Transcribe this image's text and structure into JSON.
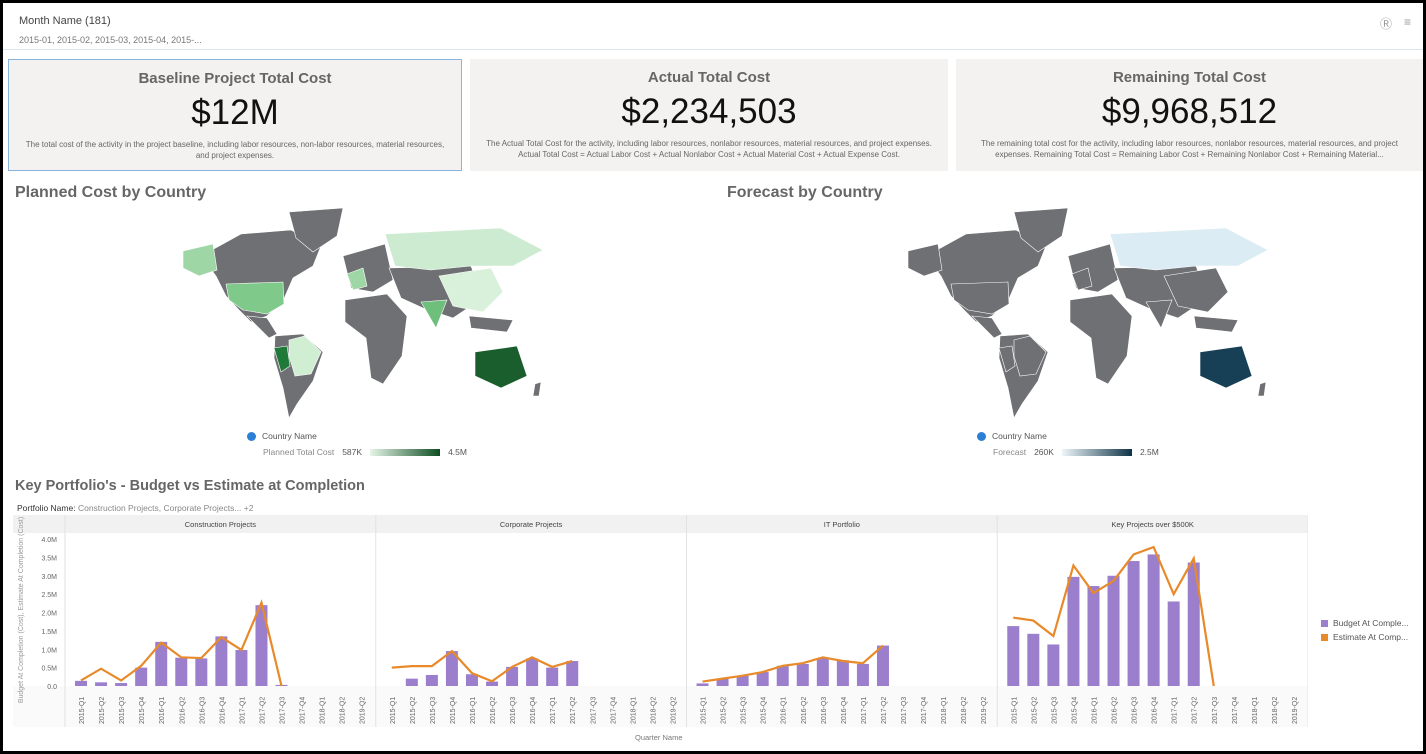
{
  "filter": {
    "title": "Month Name (181)",
    "values": "2015-01, 2015-02, 2015-03, 2015-04, 2015-..."
  },
  "icons": [
    "help-icon",
    "menu-icon"
  ],
  "kpis": [
    {
      "title": "Baseline Project Total Cost",
      "value": "$12M",
      "desc": "The total cost of the activity in the project baseline, including labor resources, non-labor resources, material resources, and project expenses."
    },
    {
      "title": "Actual Total Cost",
      "value": "$2,234,503",
      "desc": "The Actual Total Cost for the activity, including labor resources, nonlabor resources, material resources, and project expenses. Actual Total Cost = Actual Labor Cost + Actual Nonlabor Cost + Actual Material Cost + Actual Expense Cost."
    },
    {
      "title": "Remaining Total Cost",
      "value": "$9,968,512",
      "desc": "The remaining total cost for the activity, including labor resources, nonlabor resources, material resources, and project expenses. Remaining Total Cost = Remaining Labor Cost + Remaining Nonlabor Cost + Remaining Material..."
    }
  ],
  "maps": [
    {
      "title": "Planned Cost by Country",
      "legend_label": "Country Name",
      "measure": "Planned Total Cost",
      "min": "587K",
      "max": "4.5M",
      "grad_from": "#e6f5e8",
      "grad_to": "#0d4d22",
      "colors": {
        "base": "#6e7073",
        "us": "#7fc98b",
        "alaska": "#9fd6a5",
        "russia": "#cdebd0",
        "china": "#d9f0db",
        "india": "#6dbf7b",
        "peru": "#1f7a3a",
        "brazil": "#cfeed2",
        "europe": "#9fd6a5",
        "australia": "#1b5e2e"
      }
    },
    {
      "title": "Forecast by Country",
      "legend_label": "Country Name",
      "measure": "Forecast",
      "min": "260K",
      "max": "2.5M",
      "grad_from": "#eef6fa",
      "grad_to": "#0e3346",
      "colors": {
        "base": "#6e7073",
        "us": "#6e7073",
        "alaska": "#6e7073",
        "russia": "#dcecf4",
        "china": "#6e7073",
        "india": "#6e7073",
        "peru": "#6e7073",
        "brazil": "#6e7073",
        "europe": "#6e7073",
        "australia": "#173f55"
      }
    }
  ],
  "portfolio": {
    "title": "Key Portfolio's - Budget vs Estimate at Completion",
    "filter_label": "Portfolio Name:",
    "filter_value": "Construction Projects, Corporate Projects... +2"
  },
  "chart_data": {
    "type": "bar",
    "title": "Key Portfolio's - Budget vs Estimate at Completion",
    "xlabel": "Quarter Name",
    "ylabel": "Budget At Completion (Cost), Estimate At Completion (Cost)",
    "ylim": [
      0,
      4000000
    ],
    "yticks": [
      "0.0",
      "0.5M",
      "1.0M",
      "1.5M",
      "2.0M",
      "2.5M",
      "3.0M",
      "3.5M",
      "4.0M"
    ],
    "categories": [
      "2015-Q1",
      "2015-Q2",
      "2015-Q3",
      "2015-Q4",
      "2016-Q1",
      "2016-Q2",
      "2016-Q3",
      "2016-Q4",
      "2017-Q1",
      "2017-Q2",
      "2017-Q3",
      "2017-Q4",
      "2018-Q1",
      "2018-Q2",
      "2019-Q2"
    ],
    "legend": [
      "Budget At Comple...",
      "Estimate At Comp..."
    ],
    "colors": {
      "budget": "#9b7fcc",
      "estimate": "#e8892a"
    },
    "panels": [
      {
        "name": "Construction Projects",
        "budget": [
          0.14,
          0.1,
          0.08,
          0.5,
          1.2,
          0.77,
          0.75,
          1.35,
          0.98,
          2.2,
          0.03,
          null,
          null,
          null,
          null
        ],
        "estimate": [
          0.15,
          0.47,
          0.15,
          0.55,
          1.18,
          0.78,
          0.76,
          1.33,
          0.98,
          2.27,
          0.0,
          null,
          null,
          null,
          null
        ]
      },
      {
        "name": "Corporate Projects",
        "budget": [
          0,
          0.2,
          0.3,
          0.95,
          0.32,
          0.12,
          0.52,
          0.75,
          0.5,
          0.68,
          null,
          null,
          null,
          null,
          null
        ],
        "estimate": [
          0.5,
          0.54,
          0.54,
          0.95,
          0.35,
          0.13,
          0.52,
          0.78,
          0.52,
          0.68,
          null,
          null,
          null,
          null,
          null
        ]
      },
      {
        "name": "IT Portfolio",
        "budget": [
          0.07,
          0.2,
          0.28,
          0.38,
          0.55,
          0.6,
          0.75,
          0.7,
          0.6,
          1.1,
          null,
          null,
          null,
          null,
          null
        ],
        "estimate": [
          0.12,
          0.2,
          0.28,
          0.38,
          0.55,
          0.62,
          0.78,
          0.68,
          0.62,
          1.1,
          null,
          null,
          null,
          null,
          null
        ]
      },
      {
        "name": "Key Projects over $500K",
        "budget": [
          1.63,
          1.42,
          1.13,
          2.97,
          2.72,
          3.0,
          3.4,
          3.58,
          2.3,
          3.36,
          null,
          null,
          null,
          null,
          null
        ],
        "estimate": [
          1.86,
          1.78,
          1.36,
          3.28,
          2.53,
          2.86,
          3.58,
          3.78,
          2.5,
          3.47,
          0.0,
          null,
          null,
          null,
          null
        ]
      }
    ],
    "units": "millions"
  }
}
